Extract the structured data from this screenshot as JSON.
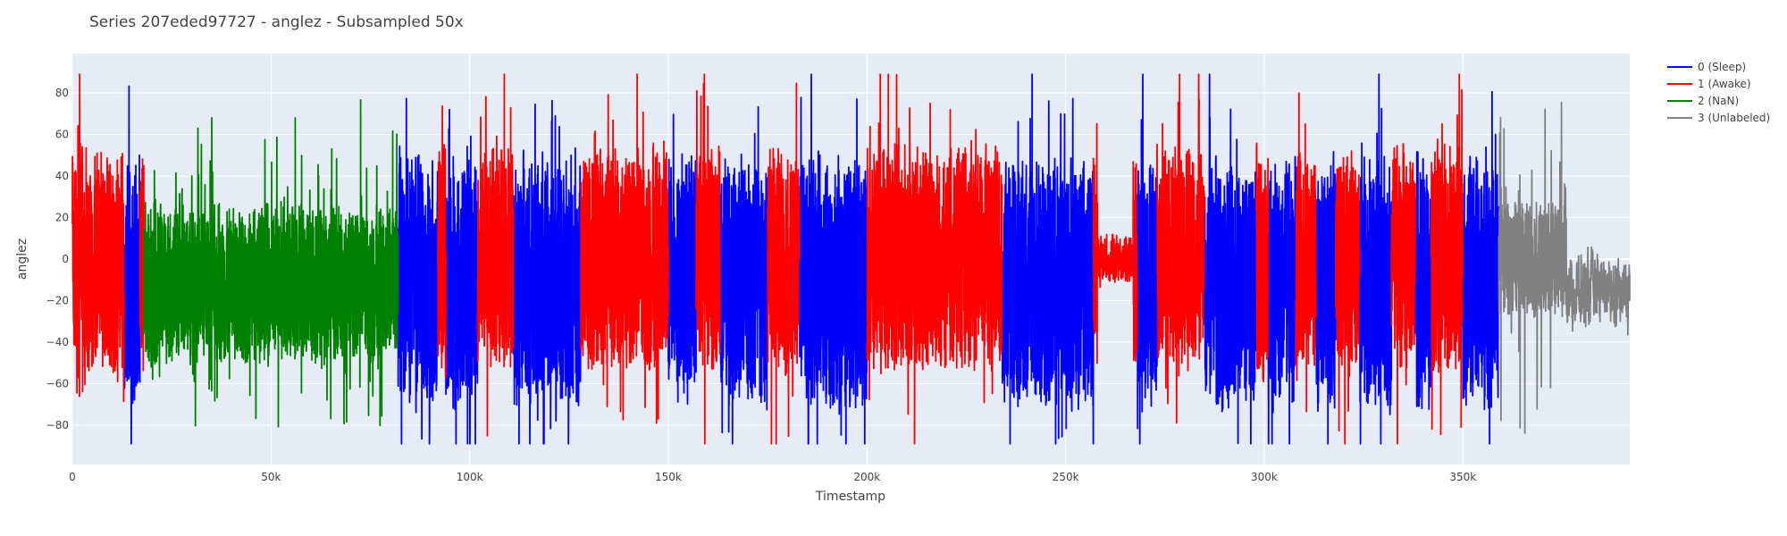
{
  "chart_data": {
    "type": "line",
    "title": "Series 207eded97727 - anglez - Subsampled 50x",
    "xlabel": "Timestamp",
    "ylabel": "anglez",
    "xlim": [
      0,
      392000
    ],
    "ylim": [
      -99,
      99
    ],
    "x_ticks": [
      0,
      50000,
      100000,
      150000,
      200000,
      250000,
      300000,
      350000
    ],
    "x_tick_labels": [
      "0",
      "50k",
      "100k",
      "150k",
      "200k",
      "250k",
      "300k",
      "350k"
    ],
    "y_ticks": [
      -80,
      -60,
      -40,
      -20,
      0,
      20,
      40,
      60,
      80
    ],
    "y_tick_labels": [
      "−80",
      "−60",
      "−40",
      "−20",
      "0",
      "20",
      "40",
      "60",
      "80"
    ],
    "grid": true,
    "legend_position": "top-right",
    "series": [
      {
        "name": "0 (Sleep)",
        "color": "#0000ff",
        "segments": [
          [
            13000,
            17000
          ],
          [
            82000,
            92000
          ],
          [
            94000,
            102000
          ],
          [
            111000,
            128000
          ],
          [
            150000,
            157000
          ],
          [
            163000,
            175000
          ],
          [
            183000,
            200000
          ],
          [
            234000,
            257000
          ],
          [
            268000,
            273000
          ],
          [
            285000,
            298000
          ],
          [
            301000,
            308000
          ],
          [
            313000,
            318000
          ],
          [
            324000,
            332000
          ],
          [
            338000,
            342000
          ],
          [
            350000,
            359000
          ]
        ]
      },
      {
        "name": "1 (Awake)",
        "color": "#ff0000",
        "segments": [
          [
            0,
            13000
          ],
          [
            17000,
            18000
          ],
          [
            92000,
            94000
          ],
          [
            102000,
            111000
          ],
          [
            128000,
            150000
          ],
          [
            157000,
            163000
          ],
          [
            175000,
            183000
          ],
          [
            200000,
            234000
          ],
          [
            257000,
            268000
          ],
          [
            273000,
            285000
          ],
          [
            298000,
            301000
          ],
          [
            308000,
            313000
          ],
          [
            318000,
            324000
          ],
          [
            332000,
            338000
          ],
          [
            342000,
            350000
          ]
        ]
      },
      {
        "name": "2 (NaN)",
        "color": "#008000",
        "segments": [
          [
            18000,
            82000
          ]
        ]
      },
      {
        "name": "3 (Unlabeled)",
        "color": "#808080",
        "segments": [
          [
            359000,
            392000
          ]
        ]
      }
    ],
    "points_per_1000": 1.6,
    "y_range_observed": [
      -89,
      89
    ]
  }
}
